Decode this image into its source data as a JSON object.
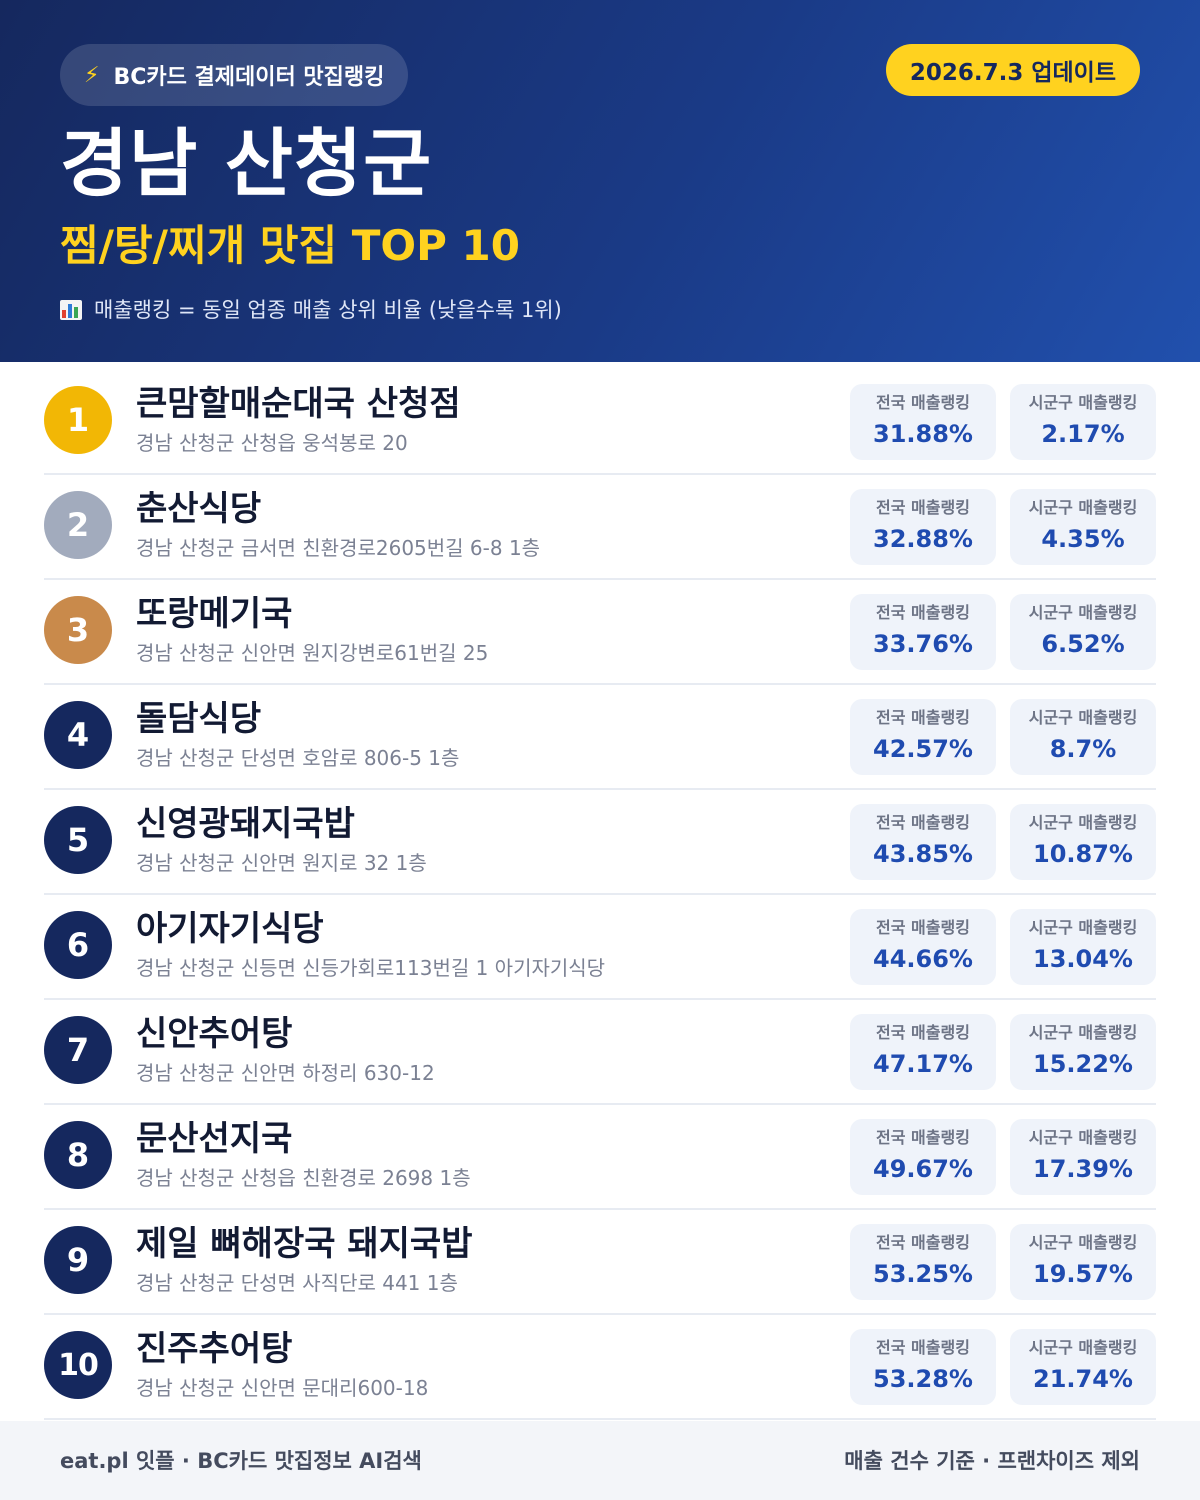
{
  "header": {
    "source_label": "BC카드 결제데이터 맛집랭킹",
    "update_label": "2026.7.3 업데이트",
    "region": "경남 산청군",
    "category": "찜/탕/찌개 맛집 TOP 10",
    "legend": "매출랭킹 = 동일 업종 매출 상위 비율 (낮을수록 1위)",
    "icons": [
      "lightning-icon",
      "bar-chart-icon"
    ]
  },
  "colors": {
    "header_bg": "#1a3a86",
    "accent_yellow": "#ffd21f",
    "rank_gold": "#f2b705",
    "rank_silver": "#a2abbd",
    "rank_bronze": "#c98a4b",
    "rank_default": "#15285e",
    "value_blue": "#1f4bb0"
  },
  "stat_labels": {
    "national": "전국 매출랭킹",
    "local": "시군구 매출랭킹"
  },
  "rows": [
    {
      "rank": "1",
      "name": "큰맘할매순대국 산청점",
      "address": "경남 산청군 산청읍 웅석봉로 20",
      "national": "31.88%",
      "local": "2.17%"
    },
    {
      "rank": "2",
      "name": "춘산식당",
      "address": "경남 산청군 금서면 친환경로2605번길 6-8 1층",
      "national": "32.88%",
      "local": "4.35%"
    },
    {
      "rank": "3",
      "name": "또랑메기국",
      "address": "경남 산청군 신안면 원지강변로61번길 25",
      "national": "33.76%",
      "local": "6.52%"
    },
    {
      "rank": "4",
      "name": "돌담식당",
      "address": "경남 산청군 단성면 호암로 806-5 1층",
      "national": "42.57%",
      "local": "8.7%"
    },
    {
      "rank": "5",
      "name": "신영광돼지국밥",
      "address": "경남 산청군 신안면 원지로 32 1층",
      "national": "43.85%",
      "local": "10.87%"
    },
    {
      "rank": "6",
      "name": "아기자기식당",
      "address": "경남 산청군 신등면 신등가회로113번길 1 아기자기식당",
      "national": "44.66%",
      "local": "13.04%"
    },
    {
      "rank": "7",
      "name": "신안추어탕",
      "address": "경남 산청군 신안면 하정리 630-12",
      "national": "47.17%",
      "local": "15.22%"
    },
    {
      "rank": "8",
      "name": "문산선지국",
      "address": "경남 산청군 산청읍 친환경로 2698 1층",
      "national": "49.67%",
      "local": "17.39%"
    },
    {
      "rank": "9",
      "name": "제일 뼈해장국 돼지국밥",
      "address": "경남 산청군 단성면 사직단로 441 1층",
      "national": "53.25%",
      "local": "19.57%"
    },
    {
      "rank": "10",
      "name": "진주추어탕",
      "address": "경남 산청군 신안면 문대리600-18",
      "national": "53.28%",
      "local": "21.74%"
    }
  ],
  "footer": {
    "left": "eat.pl 잇플 · BC카드 맛집정보 AI검색",
    "right": "매출 건수 기준 · 프랜차이즈 제외"
  }
}
